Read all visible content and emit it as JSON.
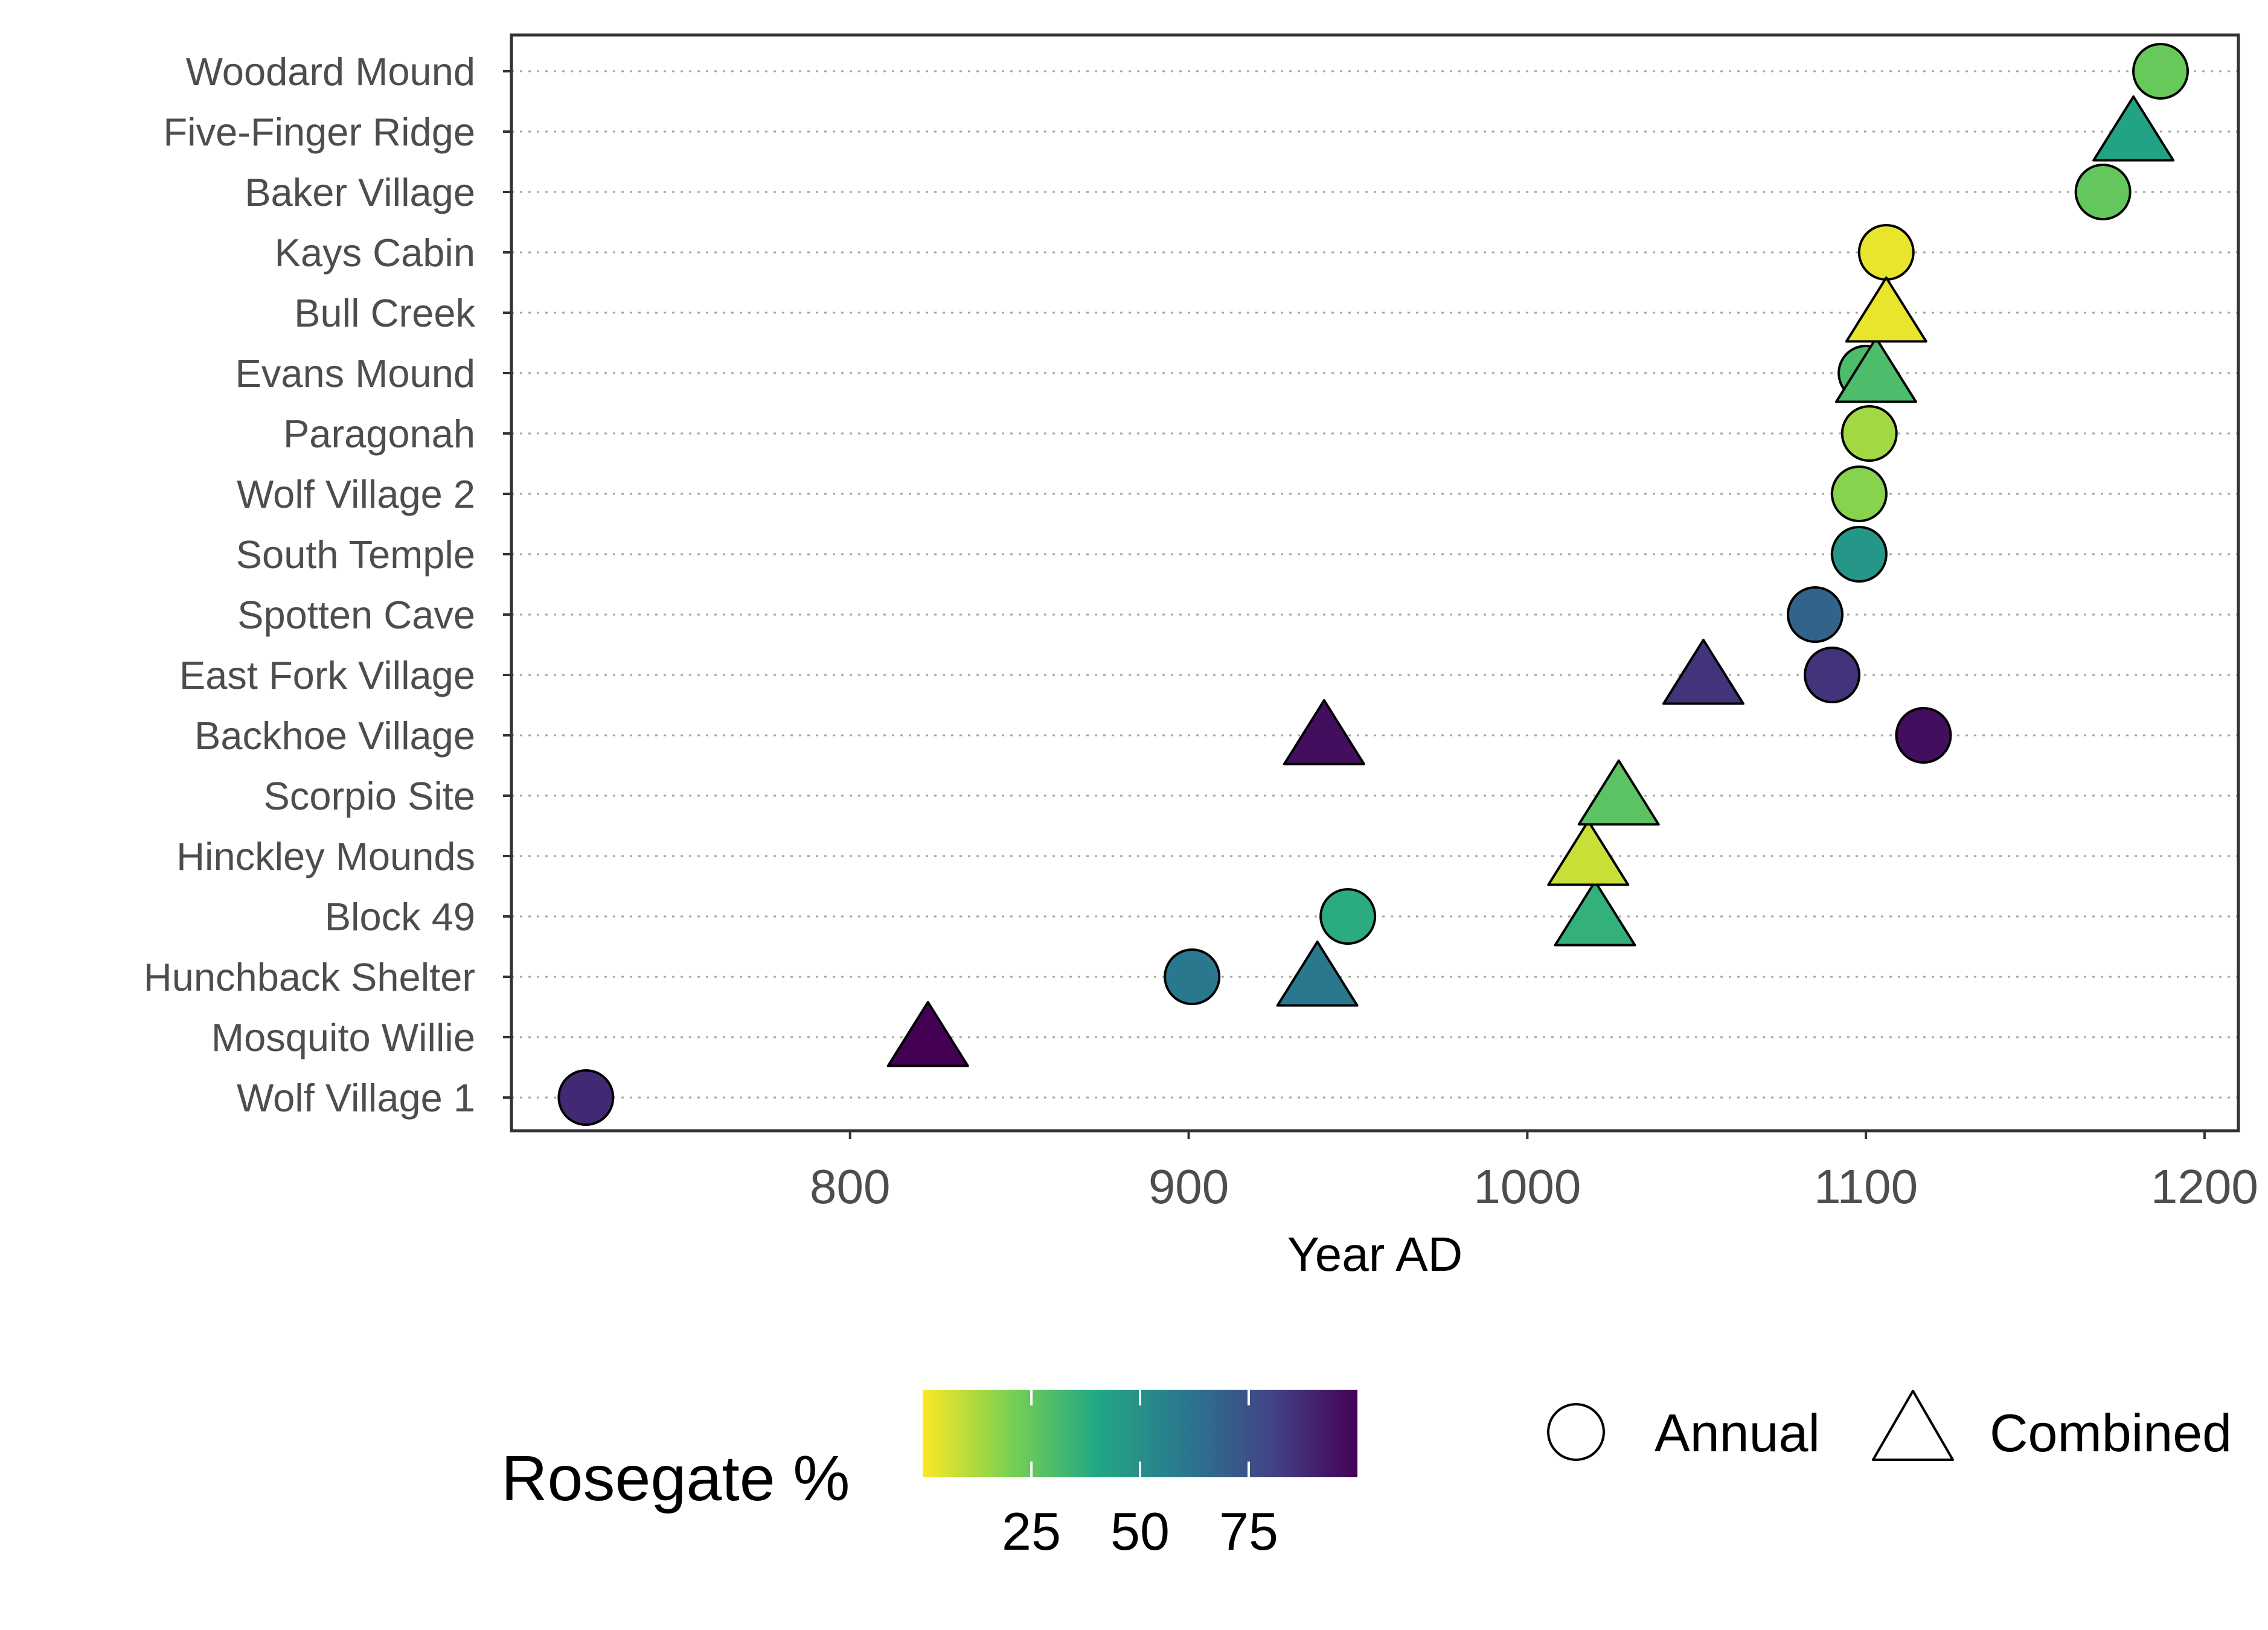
{
  "chart_data": {
    "type": "scatter",
    "xlabel": "Year AD",
    "x_ticks": [
      800,
      900,
      1000,
      1100,
      1200
    ],
    "xlim": [
      700,
      1210
    ],
    "sites": [
      "Wolf Village 1",
      "Mosquito Willie",
      "Hunchback Shelter",
      "Block 49",
      "Hinckley Mounds",
      "Scorpio Site",
      "Backhoe Village",
      "East Fork Village",
      "Spotten Cave",
      "South Temple",
      "Wolf Village 2",
      "Paragonah",
      "Evans Mound",
      "Bull Creek",
      "Kays Cabin",
      "Baker Village",
      "Five-Finger Ridge",
      "Woodard Mound"
    ],
    "grid": "horizontal dotted",
    "series": [
      {
        "name": "Annual",
        "shape": "circle",
        "points": [
          {
            "site": "Wolf Village 1",
            "year": 722,
            "rosegate": 88
          },
          {
            "site": "Hunchback Shelter",
            "year": 901,
            "rosegate": 60
          },
          {
            "site": "Block 49",
            "year": 947,
            "rosegate": 38
          },
          {
            "site": "Backhoe Village",
            "year": 1117,
            "rosegate": 96
          },
          {
            "site": "East Fork Village",
            "year": 1090,
            "rosegate": 85
          },
          {
            "site": "Spotten Cave",
            "year": 1085,
            "rosegate": 68
          },
          {
            "site": "South Temple",
            "year": 1098,
            "rosegate": 47
          },
          {
            "site": "Wolf Village 2",
            "year": 1098,
            "rosegate": 18
          },
          {
            "site": "Paragonah",
            "year": 1101,
            "rosegate": 14
          },
          {
            "site": "Evans Mound",
            "year": 1100,
            "rosegate": 30
          },
          {
            "site": "Kays Cabin",
            "year": 1106,
            "rosegate": 3
          },
          {
            "site": "Baker Village",
            "year": 1170,
            "rosegate": 25
          },
          {
            "site": "Woodard Mound",
            "year": 1187,
            "rosegate": 24
          }
        ]
      },
      {
        "name": "Combined",
        "shape": "triangle",
        "points": [
          {
            "site": "Mosquito Willie",
            "year": 823,
            "rosegate": 100
          },
          {
            "site": "Hunchback Shelter",
            "year": 938,
            "rosegate": 60
          },
          {
            "site": "Block 49",
            "year": 1020,
            "rosegate": 36
          },
          {
            "site": "Hinckley Mounds",
            "year": 1018,
            "rosegate": 8
          },
          {
            "site": "Scorpio Site",
            "year": 1027,
            "rosegate": 27
          },
          {
            "site": "Backhoe Village",
            "year": 940,
            "rosegate": 96
          },
          {
            "site": "East Fork Village",
            "year": 1052,
            "rosegate": 85
          },
          {
            "site": "Evans Mound",
            "year": 1103,
            "rosegate": 30
          },
          {
            "site": "Bull Creek",
            "year": 1106,
            "rosegate": 3
          },
          {
            "site": "Five-Finger Ridge",
            "year": 1179,
            "rosegate": 42
          }
        ]
      }
    ],
    "colorbar": {
      "title": "Rosegate %",
      "ticks": [
        25,
        50,
        75
      ],
      "range": [
        0,
        100
      ],
      "stops": [
        "#fde725",
        "#7ad151",
        "#22a884",
        "#2a788e",
        "#414487",
        "#440154"
      ]
    },
    "shape_legend": [
      {
        "label": "Annual",
        "shape": "circle"
      },
      {
        "label": "Combined",
        "shape": "triangle"
      }
    ]
  }
}
